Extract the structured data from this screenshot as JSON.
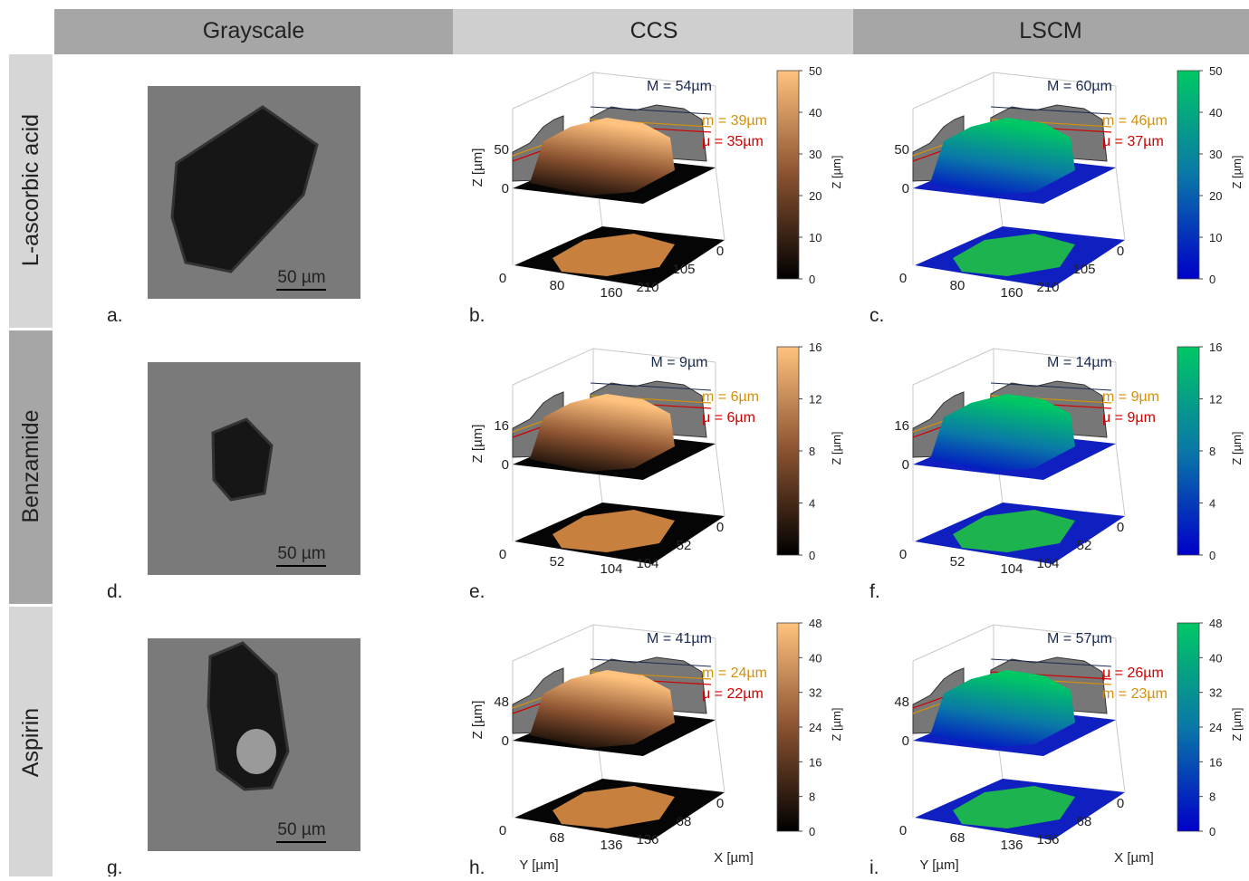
{
  "columns": [
    "Grayscale",
    "CCS",
    "LSCM"
  ],
  "styles": {
    "ccs": {
      "colormap": [
        "#000000",
        "#8a5230",
        "#ffc27f"
      ],
      "floor": "#050505",
      "blob": "#c8803f"
    },
    "lscm": {
      "colormap": [
        "#0000c8",
        "#0a78a8",
        "#00c864"
      ],
      "floor": "#1020c0",
      "blob": "#1db34f"
    }
  },
  "rows": [
    {
      "label": "L-ascorbic acid",
      "grayscale": {
        "letter": "a.",
        "scale_bar": "50 µm"
      },
      "ccs": {
        "letter": "b.",
        "max_label": "M = 54µm",
        "stats": [
          {
            "text": "m = 39µm",
            "color": "#d4900a"
          },
          {
            "text": "μ = 35µm",
            "color": "#d00000"
          }
        ],
        "z_ticks": [
          0,
          50
        ],
        "y_ticks": [
          0,
          80,
          160
        ],
        "x_ticks": [
          0,
          105,
          210
        ],
        "colorbar_ticks": [
          0,
          10,
          20,
          30,
          40,
          50
        ],
        "z_label": "Z [µm]",
        "colorbar_label": "Z [µm]"
      },
      "lscm": {
        "letter": "c.",
        "max_label": "M = 60µm",
        "stats": [
          {
            "text": "m = 46µm",
            "color": "#d4900a"
          },
          {
            "text": "μ = 37µm",
            "color": "#d00000"
          }
        ],
        "z_ticks": [
          0,
          50
        ],
        "y_ticks": [
          0,
          80,
          160
        ],
        "x_ticks": [
          0,
          105,
          210
        ],
        "colorbar_ticks": [
          0,
          10,
          20,
          30,
          40,
          50
        ],
        "colorbar_label": "Z [µm]"
      }
    },
    {
      "label": "Benzamide",
      "grayscale": {
        "letter": "d.",
        "scale_bar": "50 µm"
      },
      "ccs": {
        "letter": "e.",
        "max_label": "M = 9µm",
        "stats": [
          {
            "text": "m = 6µm",
            "color": "#d4900a"
          },
          {
            "text": "μ = 6µm",
            "color": "#d00000"
          }
        ],
        "z_ticks": [
          0,
          16
        ],
        "y_ticks": [
          0,
          52,
          104
        ],
        "x_ticks": [
          0,
          52,
          104
        ],
        "colorbar_ticks": [
          0,
          4,
          8,
          12,
          16
        ],
        "z_label": "Z [µm]",
        "colorbar_label": "Z [µm]"
      },
      "lscm": {
        "letter": "f.",
        "max_label": "M = 14µm",
        "stats": [
          {
            "text": "m = 9µm",
            "color": "#d4900a"
          },
          {
            "text": "μ = 9µm",
            "color": "#d00000"
          }
        ],
        "z_ticks": [
          0,
          16
        ],
        "y_ticks": [
          0,
          52,
          104
        ],
        "x_ticks": [
          0,
          52,
          104
        ],
        "colorbar_ticks": [
          0,
          4,
          8,
          12,
          16
        ],
        "colorbar_label": "Z [µm]"
      }
    },
    {
      "label": "Aspirin",
      "grayscale": {
        "letter": "g.",
        "scale_bar": "50 µm"
      },
      "ccs": {
        "letter": "h.",
        "max_label": "M = 41µm",
        "stats": [
          {
            "text": "m = 24µm",
            "color": "#d4900a"
          },
          {
            "text": "μ = 22µm",
            "color": "#d00000"
          }
        ],
        "z_ticks": [
          0,
          48
        ],
        "y_ticks": [
          0,
          68,
          136
        ],
        "x_ticks": [
          0,
          68,
          136
        ],
        "colorbar_ticks": [
          0,
          8,
          16,
          24,
          32,
          40,
          48
        ],
        "z_label": "Z [µm]",
        "colorbar_label": "Z [µm]",
        "y_label": "Y [µm]",
        "x_label": "X [µm]"
      },
      "lscm": {
        "letter": "i.",
        "max_label": "M = 57µm",
        "stats": [
          {
            "text": "μ = 26µm",
            "color": "#d00000"
          },
          {
            "text": "m = 23µm",
            "color": "#d4900a"
          }
        ],
        "z_ticks": [
          0,
          48
        ],
        "y_ticks": [
          0,
          68,
          136
        ],
        "x_ticks": [
          0,
          68,
          136
        ],
        "colorbar_ticks": [
          0,
          8,
          16,
          24,
          32,
          40,
          48
        ],
        "colorbar_label": "Z [µm]",
        "y_label": "Y [µm]",
        "x_label": "X [µm]"
      }
    }
  ]
}
